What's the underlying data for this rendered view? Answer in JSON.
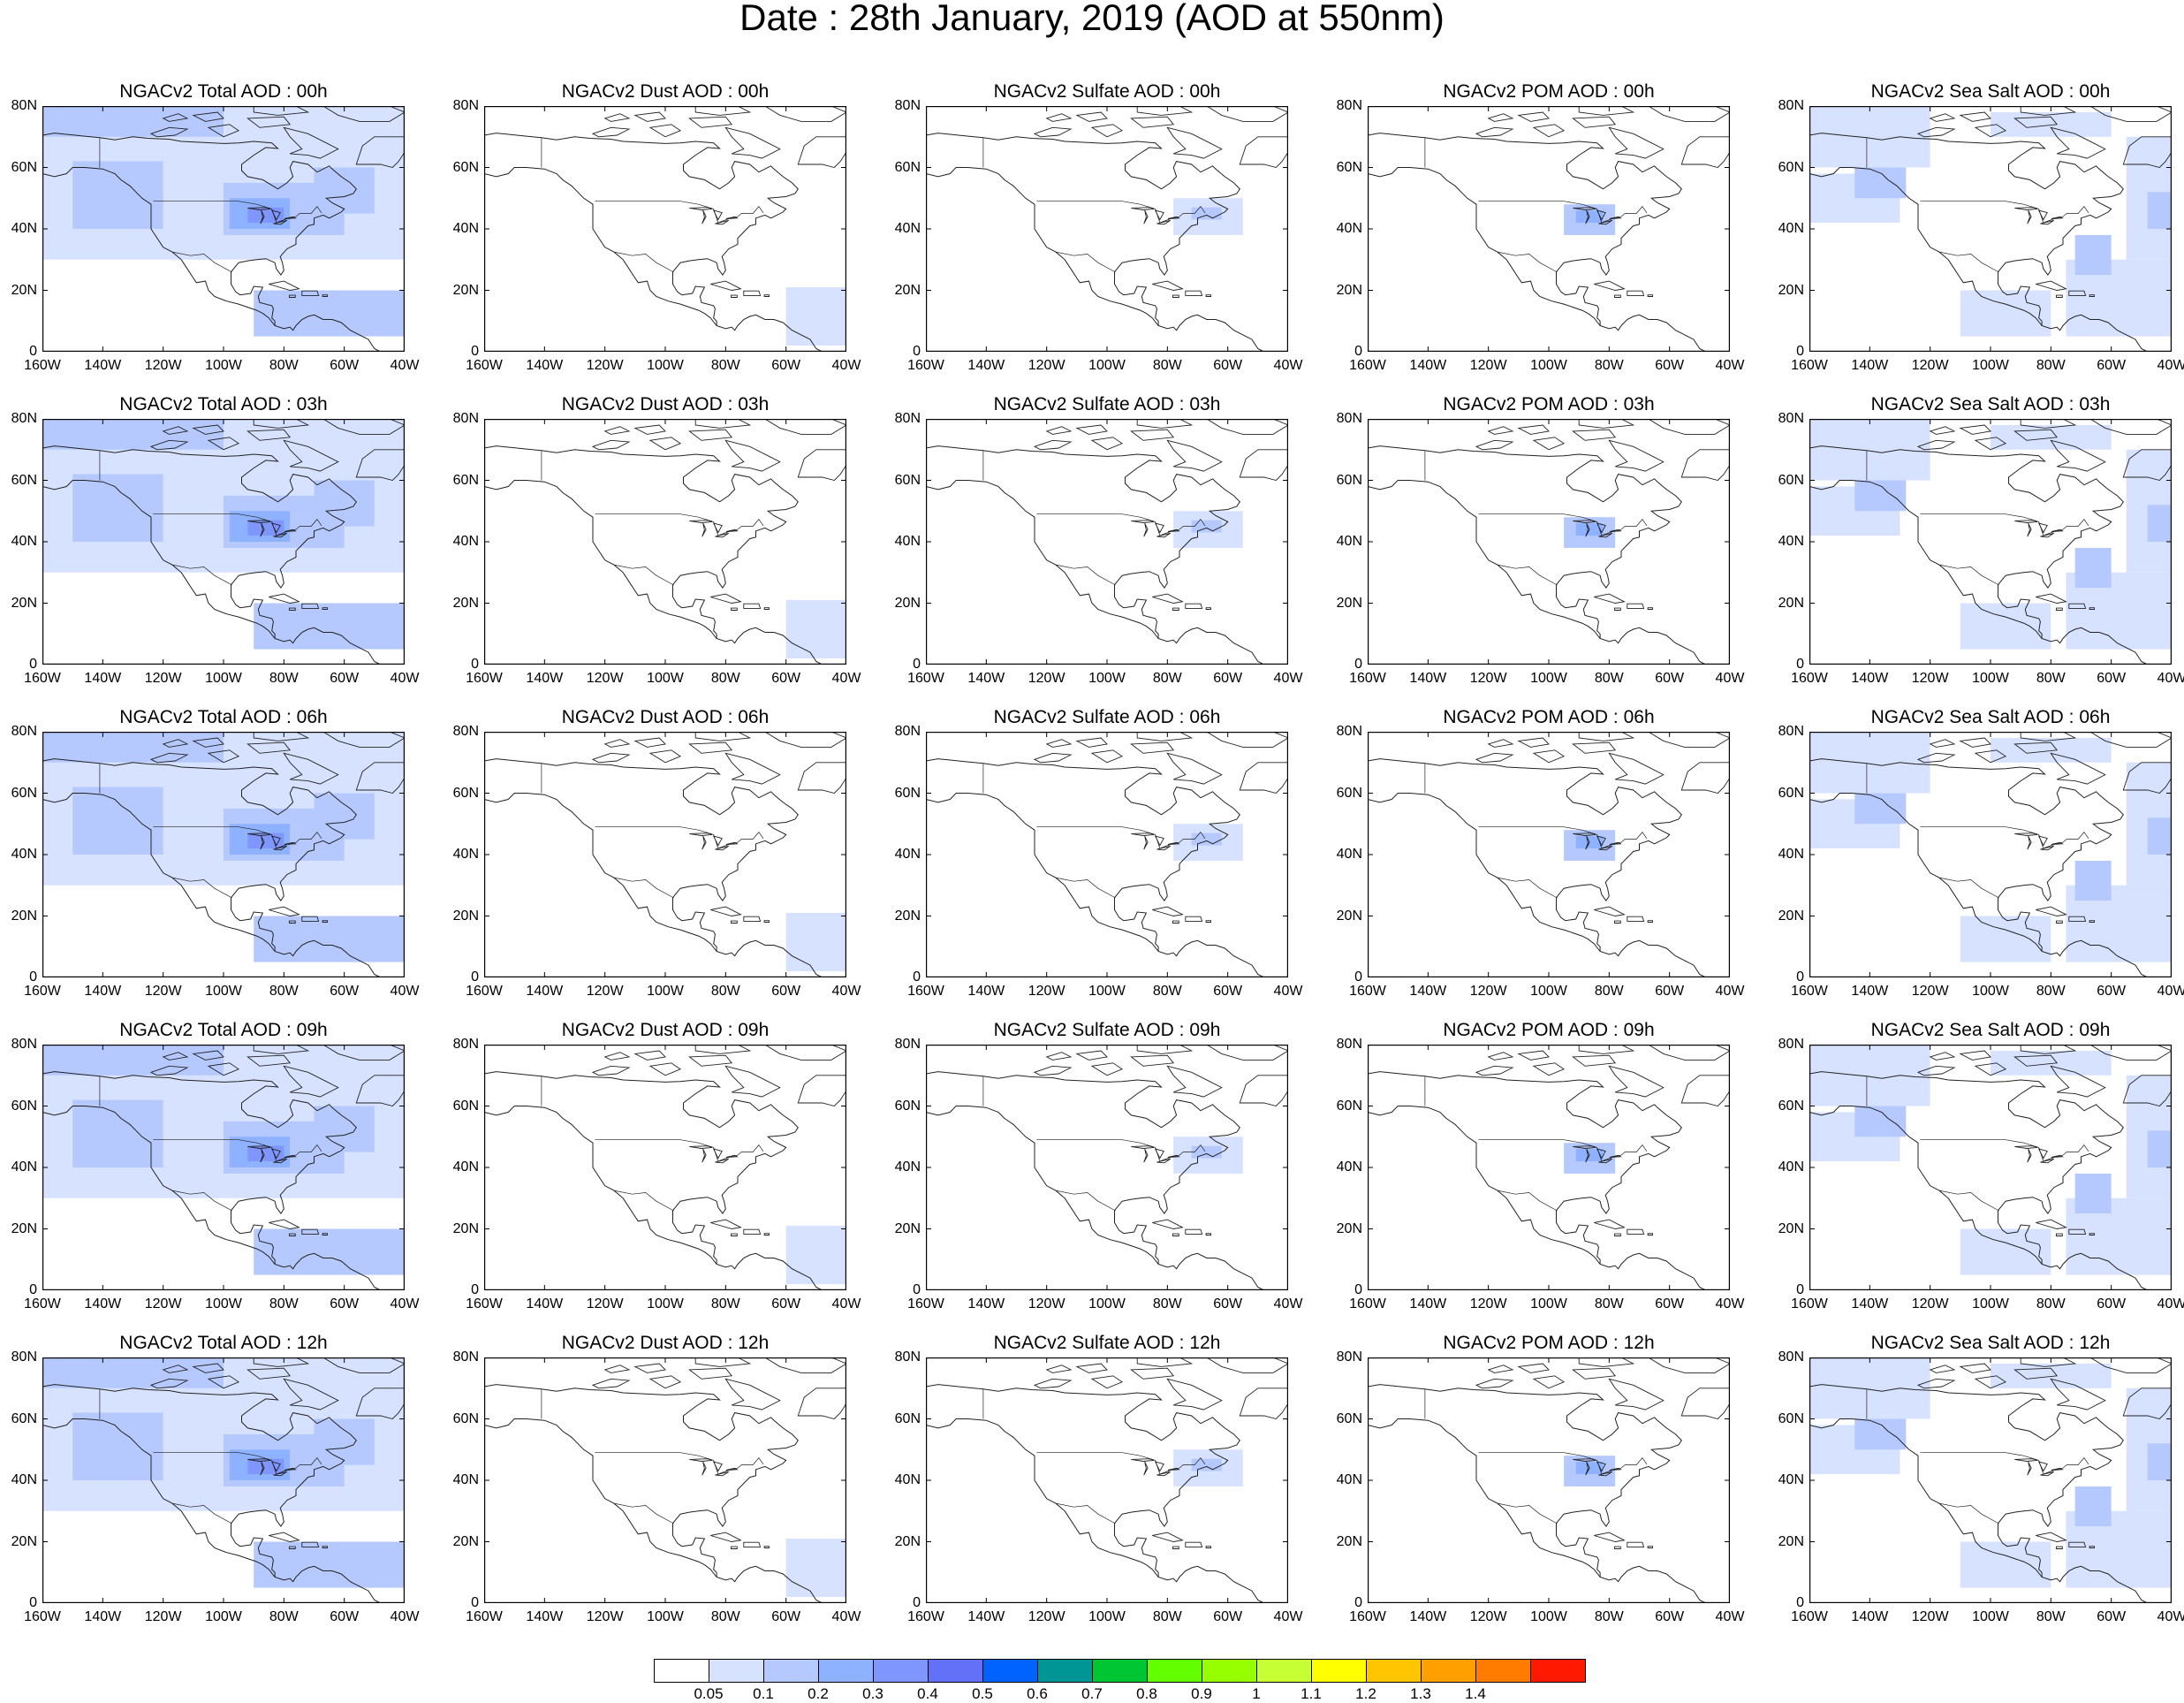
{
  "title": "Date : 28th January, 2019 (AOD at 550nm)",
  "panels": [
    [
      "NGACv2 Total AOD : 00h",
      "NGACv2 Dust AOD : 00h",
      "NGACv2 Sulfate AOD : 00h",
      "NGACv2 POM AOD : 00h",
      "NGACv2 Sea Salt AOD : 00h"
    ],
    [
      "NGACv2 Total AOD : 03h",
      "NGACv2 Dust AOD : 03h",
      "NGACv2 Sulfate AOD : 03h",
      "NGACv2 POM AOD : 03h",
      "NGACv2 Sea Salt AOD : 03h"
    ],
    [
      "NGACv2 Total AOD : 06h",
      "NGACv2 Dust AOD : 06h",
      "NGACv2 Sulfate AOD : 06h",
      "NGACv2 POM AOD : 06h",
      "NGACv2 Sea Salt AOD : 06h"
    ],
    [
      "NGACv2 Total AOD : 09h",
      "NGACv2 Dust AOD : 09h",
      "NGACv2 Sulfate AOD : 09h",
      "NGACv2 POM AOD : 09h",
      "NGACv2 Sea Salt  AOD : 09h"
    ],
    [
      "NGACv2 Total AOD  : 12h",
      "NGACv2 Dust AOD : 12h",
      "NGACv2 Sulfate AOD : 12h",
      "NGACv2 POM  AOD : 12h",
      "NGACv2 Sea Salt  AOD : 12h"
    ]
  ],
  "yticks": [
    "80N",
    "60N",
    "40N",
    "20N",
    "0"
  ],
  "xticks": [
    "160W",
    "140W",
    "120W",
    "100W",
    "80W",
    "60W",
    "40W"
  ],
  "colorbar": {
    "labels": [
      "0.05",
      "0.1",
      "0.2",
      "0.3",
      "0.4",
      "0.5",
      "0.6",
      "0.7",
      "0.8",
      "0.9",
      "1",
      "1.1",
      "1.2",
      "1.3",
      "1.4"
    ],
    "colors": [
      "#ffffff",
      "#d6e2ff",
      "#b5c9ff",
      "#8eb2ff",
      "#7f96ff",
      "#6370f8",
      "#0063ff",
      "#009696",
      "#00c633",
      "#63ff00",
      "#96ff00",
      "#c6ff33",
      "#ffff00",
      "#ffc600",
      "#ffa000",
      "#ff7c00",
      "#ff1900"
    ]
  }
}
